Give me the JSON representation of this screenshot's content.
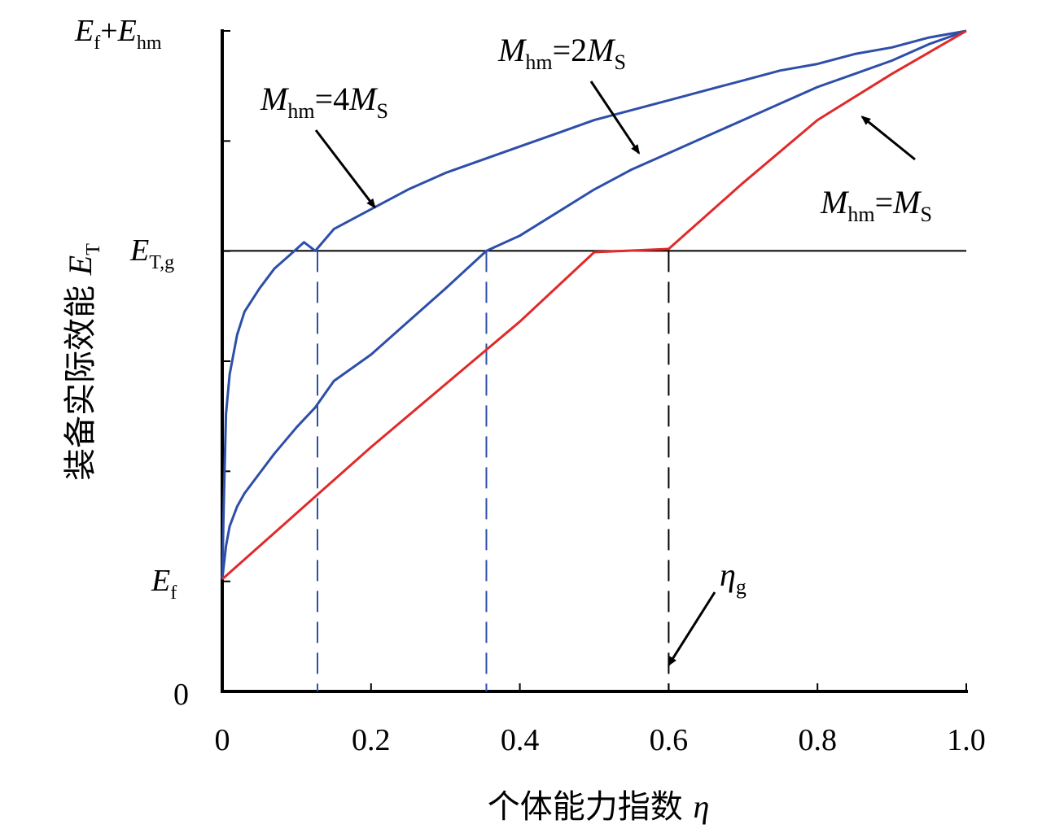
{
  "chart_data": {
    "type": "line",
    "xlabel": "个体能力指数 η",
    "ylabel": "装备实际效能 E_T",
    "xlim": [
      0,
      1.0
    ],
    "ylim": [
      0,
      1.0
    ],
    "x_ticks": [
      "0",
      "0.2",
      "0.4",
      "0.6",
      "0.8",
      "1.0"
    ],
    "y_tick_labels": {
      "zero": "0",
      "ef": "E_f",
      "etg": "E_T,g",
      "top": "E_f+E_hm"
    },
    "levels": {
      "ef": 0.17,
      "etg": 0.667,
      "top": 1.0
    },
    "series": [
      {
        "name": "Mhm=4MS",
        "color": "#2e4fa8",
        "x": [
          0,
          0.002,
          0.005,
          0.01,
          0.02,
          0.03,
          0.05,
          0.07,
          0.09,
          0.11,
          0.125,
          0.15,
          0.2,
          0.25,
          0.3,
          0.35,
          0.4,
          0.45,
          0.5,
          0.55,
          0.6,
          0.65,
          0.7,
          0.75,
          0.8,
          0.85,
          0.9,
          0.95,
          1.0
        ],
        "y": [
          0.17,
          0.28,
          0.42,
          0.48,
          0.54,
          0.575,
          0.61,
          0.64,
          0.66,
          0.68,
          0.667,
          0.7,
          0.73,
          0.76,
          0.785,
          0.805,
          0.825,
          0.845,
          0.865,
          0.88,
          0.895,
          0.91,
          0.925,
          0.94,
          0.95,
          0.965,
          0.975,
          0.99,
          1.0
        ]
      },
      {
        "name": "Mhm=2MS",
        "color": "#2e4fa8",
        "x": [
          0,
          0.005,
          0.01,
          0.02,
          0.03,
          0.05,
          0.07,
          0.1,
          0.125,
          0.15,
          0.2,
          0.25,
          0.3,
          0.355,
          0.4,
          0.45,
          0.5,
          0.55,
          0.6,
          0.65,
          0.7,
          0.75,
          0.8,
          0.85,
          0.9,
          0.95,
          1.0
        ],
        "y": [
          0.17,
          0.22,
          0.25,
          0.28,
          0.3,
          0.33,
          0.36,
          0.4,
          0.43,
          0.47,
          0.51,
          0.56,
          0.61,
          0.667,
          0.69,
          0.725,
          0.76,
          0.79,
          0.815,
          0.84,
          0.865,
          0.89,
          0.915,
          0.935,
          0.955,
          0.98,
          1.0
        ]
      },
      {
        "name": "Mhm=MS",
        "color": "#e02a2a",
        "x": [
          0,
          0.1,
          0.2,
          0.3,
          0.4,
          0.5,
          0.6,
          0.7,
          0.8,
          0.9,
          1.0
        ],
        "y": [
          0.17,
          0.27,
          0.37,
          0.465,
          0.56,
          0.665,
          0.67,
          0.77,
          0.865,
          0.935,
          1.0
        ]
      }
    ],
    "guide_lines": {
      "horizontal_level": "etg",
      "vertical_x": [
        {
          "x": 0.128,
          "color": "#2e4fa8"
        },
        {
          "x": 0.355,
          "color": "#2e4fa8"
        },
        {
          "x": 0.6,
          "color": "#000000"
        }
      ]
    },
    "annotations": [
      {
        "id": "ann-4ms",
        "text": "Mhm=4MS",
        "target_x": 0.205,
        "target_y": 0.733
      },
      {
        "id": "ann-2ms",
        "text": "Mhm=2MS",
        "target_x": 0.56,
        "target_y": 0.815
      },
      {
        "id": "ann-ms",
        "text": "Mhm=MS",
        "target_x": 0.86,
        "target_y": 0.87
      },
      {
        "id": "ann-eta-g",
        "text": "ηg",
        "target_x": 0.6,
        "target_y": 0.04
      }
    ]
  }
}
